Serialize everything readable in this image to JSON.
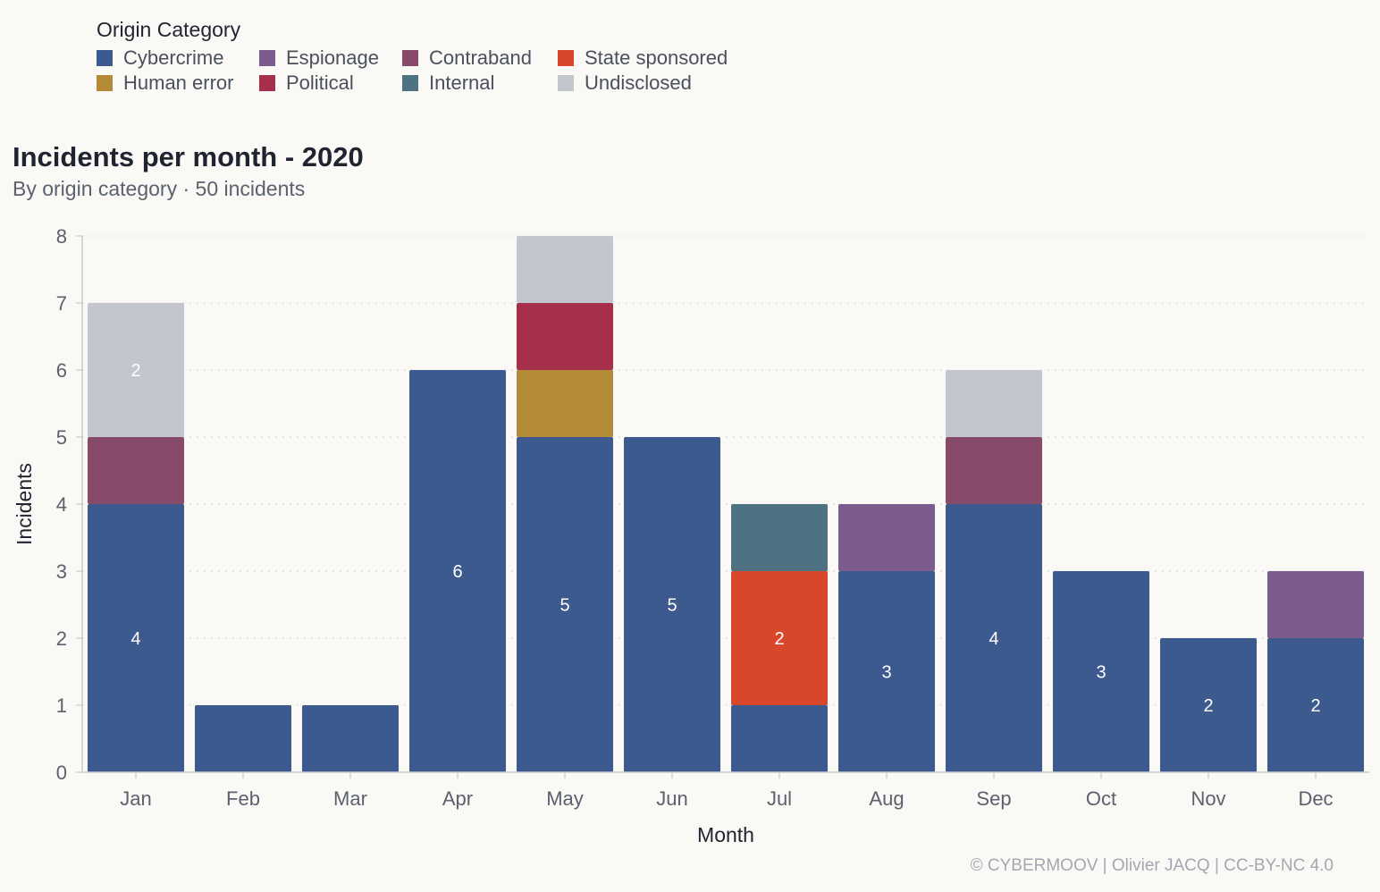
{
  "legend": {
    "title": "Origin Category",
    "items": [
      {
        "name": "Cybercrime",
        "color": "#3d5a8f"
      },
      {
        "name": "Espionage",
        "color": "#7c5b8e"
      },
      {
        "name": "Contraband",
        "color": "#874a6b"
      },
      {
        "name": "State sponsored",
        "color": "#d9472b"
      },
      {
        "name": "Human error",
        "color": "#b38a36"
      },
      {
        "name": "Political",
        "color": "#a6304b"
      },
      {
        "name": "Internal",
        "color": "#4e7282"
      },
      {
        "name": "Undisclosed",
        "color": "#c3c6cd"
      }
    ]
  },
  "credit": "© CYBERMOOV | Olivier JACQ | CC-BY-NC 4.0",
  "chart_data": {
    "type": "bar",
    "stacked": true,
    "title": "Incidents per month - 2020",
    "subtitle": "By origin category · 50 incidents",
    "xlabel": "Month",
    "ylabel": "Incidents",
    "ylim": [
      0,
      8
    ],
    "yticks": [
      0,
      1,
      2,
      3,
      4,
      5,
      6,
      7,
      8
    ],
    "grid": true,
    "legend_position": "top-left",
    "categories": [
      "Jan",
      "Feb",
      "Mar",
      "Apr",
      "May",
      "Jun",
      "Jul",
      "Aug",
      "Sep",
      "Oct",
      "Nov",
      "Dec"
    ],
    "series": [
      {
        "name": "Cybercrime",
        "color": "#3d5a8f",
        "values": [
          4,
          1,
          1,
          6,
          5,
          5,
          1,
          3,
          4,
          3,
          2,
          2
        ]
      },
      {
        "name": "Espionage",
        "color": "#7c5b8e",
        "values": [
          0,
          0,
          0,
          0,
          0,
          0,
          0,
          1,
          0,
          0,
          0,
          1
        ]
      },
      {
        "name": "Contraband",
        "color": "#874a6b",
        "values": [
          1,
          0,
          0,
          0,
          0,
          0,
          0,
          0,
          1,
          0,
          0,
          0
        ]
      },
      {
        "name": "State sponsored",
        "color": "#d9472b",
        "values": [
          0,
          0,
          0,
          0,
          0,
          0,
          2,
          0,
          0,
          0,
          0,
          0
        ]
      },
      {
        "name": "Human error",
        "color": "#b38a36",
        "values": [
          0,
          0,
          0,
          0,
          1,
          0,
          0,
          0,
          0,
          0,
          0,
          0
        ]
      },
      {
        "name": "Political",
        "color": "#a6304b",
        "values": [
          0,
          0,
          0,
          0,
          1,
          0,
          0,
          0,
          0,
          0,
          0,
          0
        ]
      },
      {
        "name": "Internal",
        "color": "#4e7282",
        "values": [
          0,
          0,
          0,
          0,
          0,
          0,
          1,
          0,
          0,
          0,
          0,
          0
        ]
      },
      {
        "name": "Undisclosed",
        "color": "#c3c6cd",
        "values": [
          2,
          0,
          0,
          0,
          1,
          0,
          0,
          0,
          1,
          0,
          0,
          0
        ]
      }
    ],
    "data_labels": [
      {
        "category": "Jan",
        "series": "Cybercrime",
        "text": "4"
      },
      {
        "category": "Jan",
        "series": "Undisclosed",
        "text": "2"
      },
      {
        "category": "Apr",
        "series": "Cybercrime",
        "text": "6"
      },
      {
        "category": "May",
        "series": "Cybercrime",
        "text": "5"
      },
      {
        "category": "Jun",
        "series": "Cybercrime",
        "text": "5"
      },
      {
        "category": "Jul",
        "series": "State sponsored",
        "text": "2"
      },
      {
        "category": "Aug",
        "series": "Cybercrime",
        "text": "3"
      },
      {
        "category": "Sep",
        "series": "Cybercrime",
        "text": "4"
      },
      {
        "category": "Oct",
        "series": "Cybercrime",
        "text": "3"
      },
      {
        "category": "Nov",
        "series": "Cybercrime",
        "text": "2"
      },
      {
        "category": "Dec",
        "series": "Cybercrime",
        "text": "2"
      }
    ]
  }
}
